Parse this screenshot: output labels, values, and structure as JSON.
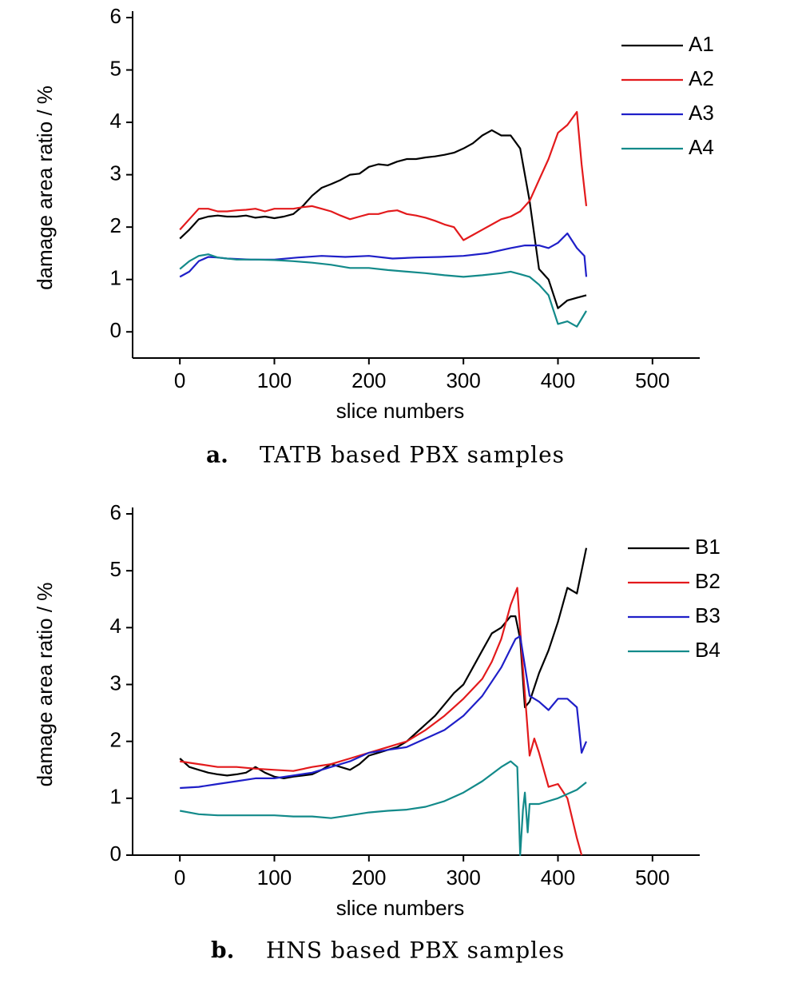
{
  "chart_data": [
    {
      "type": "line",
      "xlabel": "slice numbers",
      "ylabel": "damage area ratio / %",
      "caption_label": "a.",
      "caption": "TATB based PBX samples",
      "xlim": [
        -50,
        550
      ],
      "ylim": [
        -0.5,
        6
      ],
      "xticks": [
        0,
        100,
        200,
        300,
        400,
        500
      ],
      "yticks": [
        0,
        1,
        2,
        3,
        4,
        5,
        6
      ],
      "legend": "upper right",
      "series": [
        {
          "name": "A1",
          "color": "#000000",
          "x": [
            0,
            10,
            20,
            30,
            40,
            50,
            60,
            70,
            80,
            90,
            100,
            110,
            120,
            130,
            140,
            150,
            160,
            170,
            180,
            190,
            200,
            210,
            220,
            230,
            240,
            250,
            260,
            270,
            280,
            290,
            300,
            310,
            320,
            330,
            340,
            350,
            360,
            370,
            380,
            390,
            400,
            410,
            420,
            430
          ],
          "values": [
            1.78,
            1.95,
            2.15,
            2.2,
            2.22,
            2.2,
            2.2,
            2.22,
            2.18,
            2.2,
            2.17,
            2.2,
            2.25,
            2.4,
            2.6,
            2.75,
            2.82,
            2.9,
            3.0,
            3.02,
            3.15,
            3.2,
            3.18,
            3.25,
            3.3,
            3.3,
            3.33,
            3.35,
            3.38,
            3.42,
            3.5,
            3.6,
            3.75,
            3.85,
            3.75,
            3.75,
            3.5,
            2.5,
            1.2,
            1.0,
            0.45,
            0.6,
            0.65,
            0.7
          ]
        },
        {
          "name": "A2",
          "color": "#e31a1c",
          "x": [
            0,
            10,
            20,
            30,
            40,
            50,
            60,
            70,
            80,
            90,
            100,
            110,
            120,
            130,
            140,
            150,
            160,
            170,
            180,
            190,
            200,
            210,
            220,
            230,
            240,
            250,
            260,
            270,
            280,
            290,
            300,
            310,
            320,
            330,
            340,
            350,
            360,
            370,
            380,
            390,
            400,
            410,
            420,
            425,
            430
          ],
          "values": [
            1.95,
            2.15,
            2.35,
            2.35,
            2.3,
            2.3,
            2.32,
            2.33,
            2.35,
            2.3,
            2.35,
            2.35,
            2.35,
            2.38,
            2.4,
            2.35,
            2.3,
            2.22,
            2.15,
            2.2,
            2.25,
            2.25,
            2.3,
            2.32,
            2.25,
            2.22,
            2.18,
            2.12,
            2.05,
            2.0,
            1.75,
            1.85,
            1.95,
            2.05,
            2.15,
            2.2,
            2.3,
            2.5,
            2.9,
            3.3,
            3.8,
            3.95,
            4.2,
            3.2,
            2.4
          ]
        },
        {
          "name": "A3",
          "color": "#1f1fc8",
          "x": [
            0,
            10,
            20,
            30,
            40,
            50,
            75,
            100,
            125,
            150,
            175,
            200,
            225,
            250,
            275,
            300,
            325,
            350,
            365,
            380,
            390,
            400,
            410,
            420,
            428,
            430
          ],
          "values": [
            1.05,
            1.15,
            1.35,
            1.43,
            1.42,
            1.4,
            1.38,
            1.38,
            1.42,
            1.45,
            1.43,
            1.45,
            1.4,
            1.42,
            1.43,
            1.45,
            1.5,
            1.6,
            1.65,
            1.65,
            1.6,
            1.7,
            1.88,
            1.6,
            1.45,
            1.05
          ]
        },
        {
          "name": "A4",
          "color": "#138a8a",
          "x": [
            0,
            10,
            20,
            30,
            40,
            60,
            80,
            100,
            120,
            140,
            160,
            180,
            200,
            220,
            240,
            260,
            280,
            300,
            320,
            340,
            350,
            360,
            370,
            380,
            390,
            400,
            410,
            420,
            430
          ],
          "values": [
            1.2,
            1.35,
            1.45,
            1.48,
            1.42,
            1.38,
            1.38,
            1.37,
            1.35,
            1.32,
            1.28,
            1.22,
            1.22,
            1.18,
            1.15,
            1.12,
            1.08,
            1.05,
            1.08,
            1.12,
            1.15,
            1.1,
            1.05,
            0.9,
            0.7,
            0.15,
            0.2,
            0.1,
            0.4
          ]
        }
      ]
    },
    {
      "type": "line",
      "xlabel": "slice numbers",
      "ylabel": "damage area ratio / %",
      "caption_label": "b.",
      "caption": "HNS based PBX samples",
      "xlim": [
        -50,
        550
      ],
      "ylim": [
        0,
        6
      ],
      "xticks": [
        0,
        100,
        200,
        300,
        400,
        500
      ],
      "yticks": [
        0,
        1,
        2,
        3,
        4,
        5,
        6
      ],
      "legend": "upper right",
      "series": [
        {
          "name": "B1",
          "color": "#000000",
          "x": [
            0,
            10,
            20,
            30,
            40,
            50,
            60,
            70,
            80,
            90,
            100,
            110,
            120,
            130,
            140,
            150,
            160,
            170,
            180,
            190,
            200,
            210,
            220,
            230,
            240,
            250,
            260,
            270,
            280,
            290,
            300,
            310,
            320,
            330,
            340,
            350,
            355,
            360,
            365,
            370,
            380,
            390,
            400,
            410,
            420,
            430
          ],
          "values": [
            1.7,
            1.55,
            1.5,
            1.45,
            1.42,
            1.4,
            1.42,
            1.45,
            1.55,
            1.45,
            1.38,
            1.35,
            1.38,
            1.4,
            1.42,
            1.5,
            1.6,
            1.55,
            1.5,
            1.6,
            1.75,
            1.8,
            1.85,
            1.9,
            2.0,
            2.15,
            2.3,
            2.45,
            2.65,
            2.85,
            3.0,
            3.3,
            3.6,
            3.9,
            4.0,
            4.2,
            4.2,
            3.8,
            2.6,
            2.7,
            3.2,
            3.6,
            4.1,
            4.7,
            4.6,
            5.4
          ]
        },
        {
          "name": "B2",
          "color": "#e31a1c",
          "x": [
            0,
            20,
            40,
            60,
            80,
            100,
            120,
            140,
            160,
            180,
            200,
            220,
            240,
            260,
            280,
            300,
            320,
            330,
            340,
            350,
            357,
            362,
            370,
            375,
            380,
            390,
            400,
            410,
            420,
            425
          ],
          "values": [
            1.65,
            1.6,
            1.55,
            1.55,
            1.52,
            1.5,
            1.48,
            1.55,
            1.6,
            1.7,
            1.8,
            1.9,
            2.0,
            2.2,
            2.45,
            2.75,
            3.1,
            3.4,
            3.8,
            4.4,
            4.7,
            3.5,
            1.75,
            2.05,
            1.8,
            1.2,
            1.25,
            1.0,
            0.3,
            0.0
          ]
        },
        {
          "name": "B3",
          "color": "#1f1fc8",
          "x": [
            0,
            20,
            40,
            60,
            80,
            100,
            120,
            140,
            160,
            180,
            200,
            220,
            240,
            260,
            280,
            300,
            320,
            340,
            355,
            360,
            370,
            380,
            390,
            400,
            410,
            420,
            425,
            430
          ],
          "values": [
            1.18,
            1.2,
            1.25,
            1.3,
            1.35,
            1.35,
            1.4,
            1.45,
            1.55,
            1.65,
            1.8,
            1.85,
            1.9,
            2.05,
            2.2,
            2.45,
            2.8,
            3.3,
            3.8,
            3.85,
            2.8,
            2.7,
            2.55,
            2.75,
            2.75,
            2.6,
            1.8,
            2.0
          ]
        },
        {
          "name": "B4",
          "color": "#138a8a",
          "x": [
            0,
            20,
            40,
            60,
            80,
            100,
            120,
            140,
            160,
            180,
            200,
            220,
            240,
            260,
            280,
            300,
            320,
            340,
            350,
            357,
            360,
            363,
            365,
            368,
            370,
            380,
            400,
            420,
            430
          ],
          "values": [
            0.78,
            0.72,
            0.7,
            0.7,
            0.7,
            0.7,
            0.68,
            0.68,
            0.65,
            0.7,
            0.75,
            0.78,
            0.8,
            0.85,
            0.95,
            1.1,
            1.3,
            1.55,
            1.65,
            1.55,
            0.0,
            0.8,
            1.1,
            0.4,
            0.9,
            0.9,
            1.0,
            1.15,
            1.28
          ]
        }
      ]
    }
  ]
}
